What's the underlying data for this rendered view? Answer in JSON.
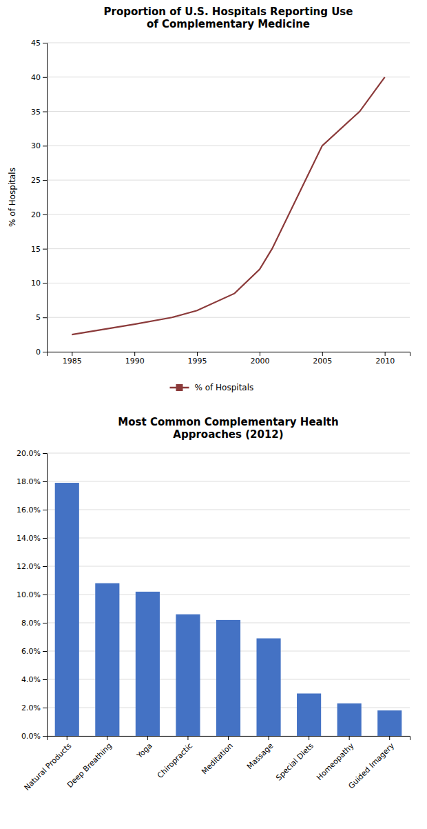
{
  "chart_data": [
    {
      "type": "line",
      "title": "Proportion of U.S. Hospitals Reporting Use\nof Complementary Medicine",
      "ylabel": "% of Hospitals",
      "x": [
        1985,
        1990,
        1993,
        1995,
        1998,
        2000,
        2001,
        2005,
        2008,
        2010
      ],
      "series": [
        {
          "name": "% of Hospitals",
          "color": "#8B3A3A",
          "values": [
            2.5,
            4.0,
            5.0,
            6.0,
            8.5,
            12.0,
            15.0,
            30.0,
            35.0,
            40.0
          ]
        }
      ],
      "xlim": [
        1983,
        2012
      ],
      "xticks": [
        1985,
        1990,
        1995,
        2000,
        2005,
        2010
      ],
      "ylim": [
        0,
        45
      ],
      "yticks": [
        0,
        5,
        10,
        15,
        20,
        25,
        30,
        35,
        40,
        45
      ],
      "grid": true,
      "legend": "bottom"
    },
    {
      "type": "bar",
      "title": "Most Common Complementary Health\nApproaches (2012)",
      "categories": [
        "Natural Products",
        "Deep Breathing",
        "Yoga",
        "Chiropractic",
        "Meditation",
        "Massage",
        "Special Diets",
        "Homeopathy",
        "Guided Imagery"
      ],
      "values": [
        0.179,
        0.108,
        0.102,
        0.086,
        0.082,
        0.069,
        0.03,
        0.023,
        0.018
      ],
      "color": "#4472C4",
      "ylim": [
        0,
        0.2
      ],
      "yticks": [
        {
          "value": 0.0,
          "label": "0.0%"
        },
        {
          "value": 0.02,
          "label": "2.0%"
        },
        {
          "value": 0.04,
          "label": "4.0%"
        },
        {
          "value": 0.06,
          "label": "6.0%"
        },
        {
          "value": 0.08,
          "label": "8.0%"
        },
        {
          "value": 0.1,
          "label": "10.0%"
        },
        {
          "value": 0.12,
          "label": "12.0%"
        },
        {
          "value": 0.14,
          "label": "14.0%"
        },
        {
          "value": 0.16,
          "label": "16.0%"
        },
        {
          "value": 0.18,
          "label": "18.0%"
        },
        {
          "value": 0.2,
          "label": "20.0%"
        }
      ],
      "grid": true
    }
  ]
}
